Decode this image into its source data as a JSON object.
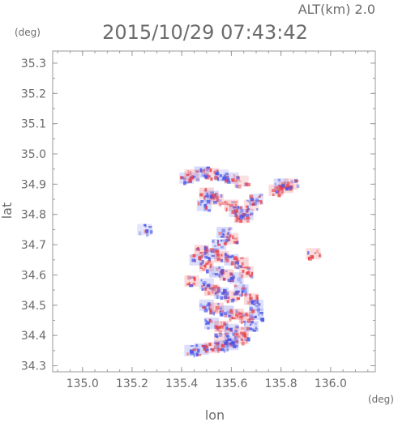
{
  "header": {
    "altitude_label": "ALT(km) 2.0",
    "timestamp": "2015/10/29 07:43:42"
  },
  "chart_data": {
    "type": "heatmap",
    "title": "2015/10/29 07:43:42",
    "subtitle": "ALT(km) 2.0",
    "xlabel": "lon",
    "ylabel": "lat",
    "x_unit": "(deg)",
    "y_unit": "(deg)",
    "xlim": [
      134.88,
      136.18
    ],
    "ylim": [
      34.28,
      35.34
    ],
    "x_ticks": [
      "135.0",
      "135.2",
      "135.4",
      "135.6",
      "135.8",
      "136.0"
    ],
    "y_ticks": [
      "34.3",
      "34.4",
      "34.5",
      "34.6",
      "34.7",
      "34.8",
      "34.9",
      "35.0",
      "35.1",
      "35.2",
      "35.3"
    ],
    "grid": false,
    "colors": {
      "positive": "#e8414a",
      "negative": "#4a55e8",
      "axis": "#9a9a9a"
    },
    "note_on_values": "diverging red/blue field (sign only, no colorbar shown); cells below are an approximation of the echo region",
    "cells": [
      [
        135.42,
        34.92,
        -0.4
      ],
      [
        135.44,
        34.93,
        0.6
      ],
      [
        135.48,
        34.94,
        -0.7
      ],
      [
        135.52,
        34.935,
        0.5
      ],
      [
        135.56,
        34.93,
        -0.3
      ],
      [
        135.6,
        34.92,
        -0.5
      ],
      [
        135.64,
        34.91,
        0.3
      ],
      [
        135.5,
        34.87,
        0.7
      ],
      [
        135.52,
        34.86,
        -0.6
      ],
      [
        135.54,
        34.85,
        0.4
      ],
      [
        135.49,
        34.83,
        -0.5
      ],
      [
        135.6,
        34.83,
        0.6
      ],
      [
        135.62,
        34.81,
        -0.4
      ],
      [
        135.64,
        34.79,
        0.5
      ],
      [
        135.66,
        34.8,
        -0.6
      ],
      [
        135.68,
        34.83,
        0.3
      ],
      [
        135.7,
        34.85,
        -0.3
      ],
      [
        135.78,
        34.88,
        0.5
      ],
      [
        135.8,
        34.9,
        -0.5
      ],
      [
        135.82,
        34.89,
        0.6
      ],
      [
        135.84,
        34.9,
        0.4
      ],
      [
        135.57,
        34.74,
        -0.6
      ],
      [
        135.6,
        34.72,
        0.5
      ],
      [
        135.55,
        34.7,
        -0.4
      ],
      [
        135.48,
        34.68,
        0.6
      ],
      [
        135.52,
        34.67,
        -0.7
      ],
      [
        135.56,
        34.66,
        0.8
      ],
      [
        135.6,
        34.65,
        -0.6
      ],
      [
        135.64,
        34.64,
        0.7
      ],
      [
        135.46,
        34.65,
        -0.5
      ],
      [
        135.5,
        34.63,
        0.4
      ],
      [
        135.54,
        34.61,
        -0.8
      ],
      [
        135.58,
        34.6,
        0.7
      ],
      [
        135.62,
        34.59,
        -0.5
      ],
      [
        135.66,
        34.61,
        0.4
      ],
      [
        135.44,
        34.58,
        0.5
      ],
      [
        135.5,
        34.57,
        -0.4
      ],
      [
        135.52,
        34.55,
        0.8
      ],
      [
        135.56,
        34.54,
        -0.6
      ],
      [
        135.6,
        34.53,
        0.5
      ],
      [
        135.64,
        34.55,
        -0.7
      ],
      [
        135.68,
        34.52,
        0.6
      ],
      [
        135.7,
        34.5,
        -0.4
      ],
      [
        135.5,
        34.5,
        -0.5
      ],
      [
        135.54,
        34.49,
        0.7
      ],
      [
        135.58,
        34.48,
        -0.8
      ],
      [
        135.62,
        34.47,
        0.6
      ],
      [
        135.66,
        34.46,
        0.8
      ],
      [
        135.7,
        34.47,
        -0.5
      ],
      [
        135.52,
        34.44,
        -0.6
      ],
      [
        135.56,
        34.43,
        0.7
      ],
      [
        135.6,
        34.42,
        -0.5
      ],
      [
        135.64,
        34.41,
        0.6
      ],
      [
        135.68,
        34.43,
        -0.4
      ],
      [
        135.56,
        34.39,
        0.5
      ],
      [
        135.6,
        34.38,
        -0.6
      ],
      [
        135.64,
        34.39,
        0.4
      ],
      [
        135.44,
        34.35,
        -0.5
      ],
      [
        135.48,
        34.355,
        -0.6
      ],
      [
        135.52,
        34.36,
        0.4
      ],
      [
        135.56,
        34.365,
        -0.7
      ],
      [
        135.6,
        34.37,
        -0.4
      ],
      [
        135.93,
        34.67,
        0.4
      ],
      [
        135.25,
        34.75,
        -0.2
      ]
    ]
  }
}
